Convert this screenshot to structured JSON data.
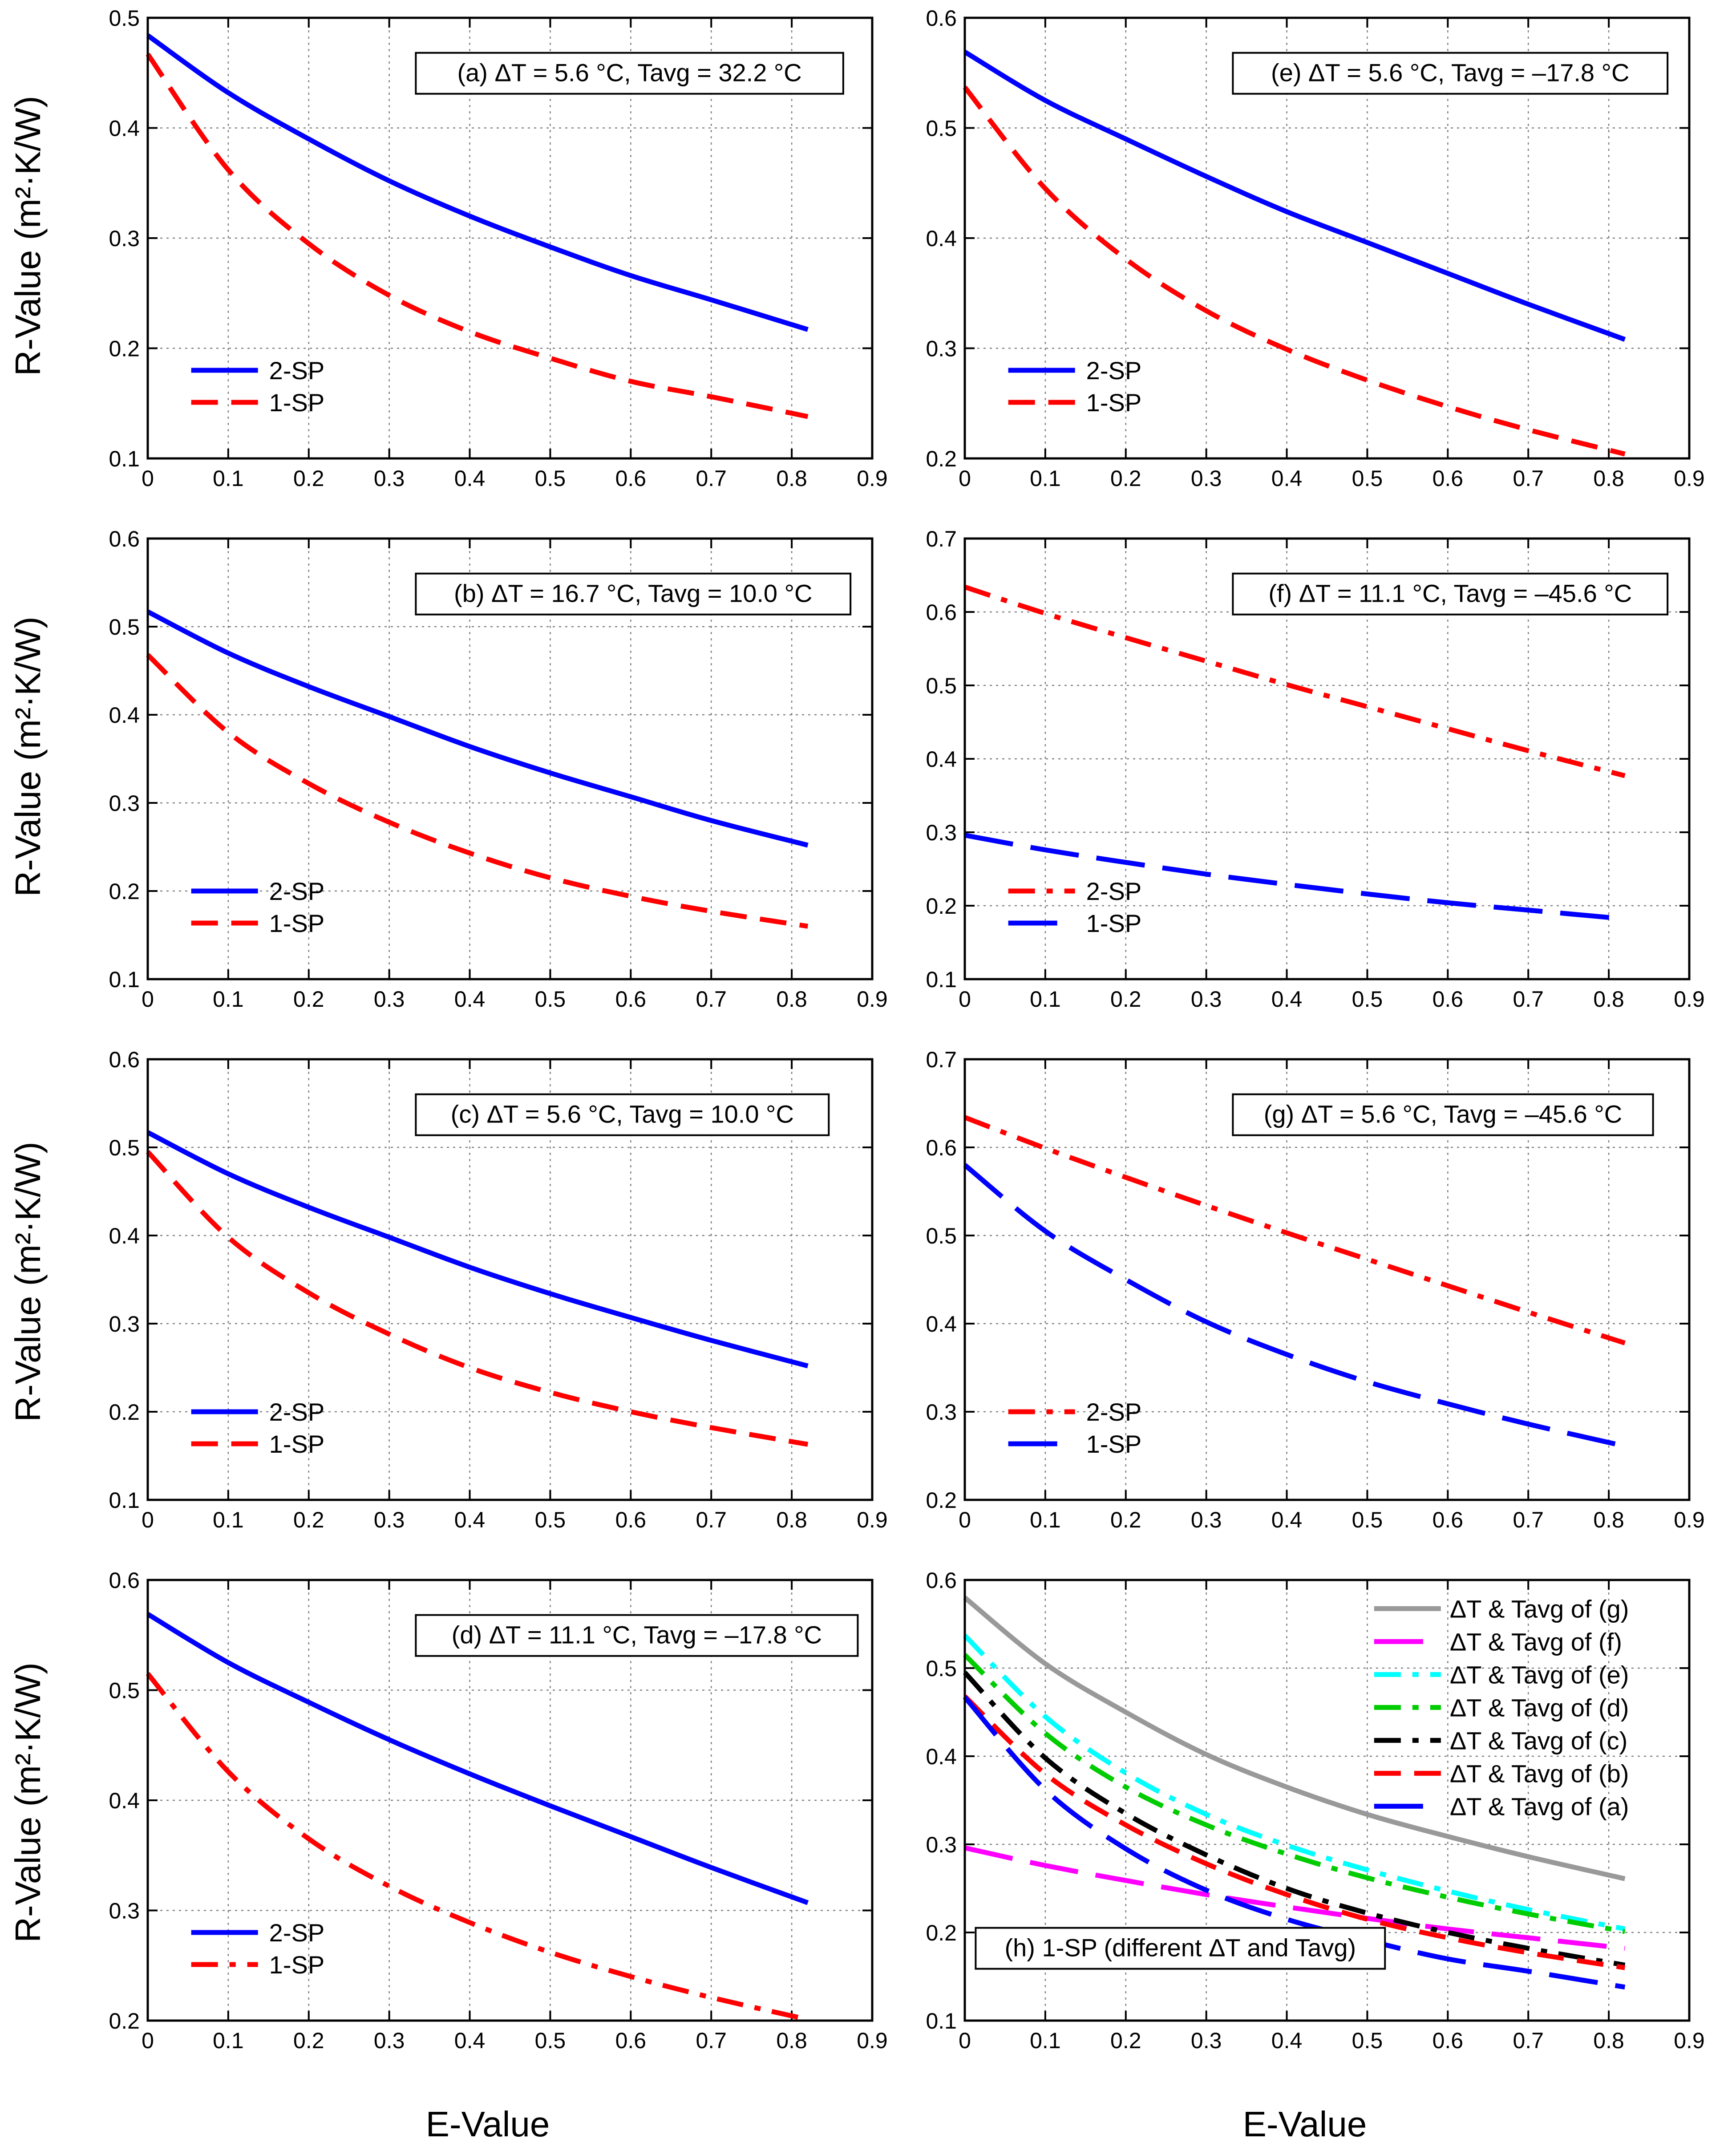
{
  "figure": {
    "xlabel_left": "E-Value",
    "xlabel_right": "E-Value",
    "ylabel": "R-Value (m²·K/W)"
  },
  "colors": {
    "blue": "#0000ff",
    "red": "#ff0000",
    "gray": "#999999",
    "magenta": "#ff00ff",
    "cyan": "#00ffff",
    "green": "#00cc00",
    "black": "#000000"
  },
  "chart_data": [
    {
      "id": "a",
      "type": "line",
      "annotation": "(a) ΔT = 5.6 °C, Tavg = 32.2 °C",
      "xlim": [
        0,
        0.9
      ],
      "ylim": [
        0.1,
        0.5
      ],
      "xticks": [
        "0",
        "0.1",
        "0.2",
        "0.3",
        "0.4",
        "0.5",
        "0.6",
        "0.7",
        "0.8",
        "0.9"
      ],
      "yticks": [
        "0.1",
        "0.2",
        "0.3",
        "0.4",
        "0.5"
      ],
      "x": [
        0,
        0.1,
        0.2,
        0.3,
        0.4,
        0.5,
        0.6,
        0.7,
        0.82
      ],
      "series": [
        {
          "name": "2-SP",
          "color": "blue",
          "style": "solid",
          "values": [
            0.484,
            0.432,
            0.39,
            0.352,
            0.32,
            0.292,
            0.266,
            0.244,
            0.217
          ]
        },
        {
          "name": "1-SP",
          "color": "red",
          "style": "dashed",
          "values": [
            0.467,
            0.362,
            0.295,
            0.248,
            0.215,
            0.191,
            0.17,
            0.156,
            0.138
          ]
        }
      ]
    },
    {
      "id": "b",
      "type": "line",
      "annotation": "(b) ΔT = 16.7 °C, Tavg = 10.0 °C",
      "xlim": [
        0,
        0.9
      ],
      "ylim": [
        0.1,
        0.6
      ],
      "xticks": [
        "0",
        "0.1",
        "0.2",
        "0.3",
        "0.4",
        "0.5",
        "0.6",
        "0.7",
        "0.8",
        "0.9"
      ],
      "yticks": [
        "0.1",
        "0.2",
        "0.3",
        "0.4",
        "0.5",
        "0.6"
      ],
      "x": [
        0,
        0.1,
        0.2,
        0.3,
        0.4,
        0.5,
        0.6,
        0.7,
        0.82
      ],
      "series": [
        {
          "name": "2-SP",
          "color": "blue",
          "style": "solid",
          "values": [
            0.517,
            0.47,
            0.432,
            0.398,
            0.364,
            0.334,
            0.307,
            0.28,
            0.252
          ]
        },
        {
          "name": "1-SP",
          "color": "red",
          "style": "dashed",
          "values": [
            0.468,
            0.38,
            0.322,
            0.278,
            0.243,
            0.215,
            0.194,
            0.177,
            0.16
          ]
        }
      ]
    },
    {
      "id": "c",
      "type": "line",
      "annotation": "(c) ΔT = 5.6 °C, Tavg = 10.0 °C",
      "xlim": [
        0,
        0.9
      ],
      "ylim": [
        0.1,
        0.6
      ],
      "xticks": [
        "0",
        "0.1",
        "0.2",
        "0.3",
        "0.4",
        "0.5",
        "0.6",
        "0.7",
        "0.8",
        "0.9"
      ],
      "yticks": [
        "0.1",
        "0.2",
        "0.3",
        "0.4",
        "0.5",
        "0.6"
      ],
      "x": [
        0,
        0.1,
        0.2,
        0.3,
        0.4,
        0.5,
        0.6,
        0.7,
        0.82
      ],
      "series": [
        {
          "name": "2-SP",
          "color": "blue",
          "style": "solid",
          "values": [
            0.517,
            0.47,
            0.432,
            0.398,
            0.364,
            0.334,
            0.307,
            0.281,
            0.252
          ]
        },
        {
          "name": "1-SP",
          "color": "red",
          "style": "dashed",
          "values": [
            0.495,
            0.398,
            0.335,
            0.288,
            0.25,
            0.222,
            0.2,
            0.182,
            0.163
          ]
        }
      ]
    },
    {
      "id": "d",
      "type": "line",
      "annotation": "(d) ΔT = 11.1 °C, Tavg = –17.8 °C",
      "xlim": [
        0,
        0.9
      ],
      "ylim": [
        0.2,
        0.6
      ],
      "xticks": [
        "0",
        "0.1",
        "0.2",
        "0.3",
        "0.4",
        "0.5",
        "0.6",
        "0.7",
        "0.8",
        "0.9"
      ],
      "yticks": [
        "0.2",
        "0.3",
        "0.4",
        "0.5",
        "0.6"
      ],
      "x": [
        0,
        0.1,
        0.2,
        0.3,
        0.4,
        0.5,
        0.6,
        0.7,
        0.82
      ],
      "series": [
        {
          "name": "2-SP",
          "color": "blue",
          "style": "solid",
          "values": [
            0.569,
            0.525,
            0.489,
            0.455,
            0.424,
            0.395,
            0.367,
            0.339,
            0.307
          ]
        },
        {
          "name": "1-SP",
          "color": "red",
          "style": "dashdot",
          "values": [
            0.515,
            0.426,
            0.365,
            0.322,
            0.289,
            0.262,
            0.24,
            0.221,
            0.201
          ]
        }
      ]
    },
    {
      "id": "e",
      "type": "line",
      "annotation": "(e) ΔT = 5.6 °C, Tavg = –17.8 °C",
      "xlim": [
        0,
        0.9
      ],
      "ylim": [
        0.2,
        0.6
      ],
      "xticks": [
        "0",
        "0.1",
        "0.2",
        "0.3",
        "0.4",
        "0.5",
        "0.6",
        "0.7",
        "0.8",
        "0.9"
      ],
      "yticks": [
        "0.2",
        "0.3",
        "0.4",
        "0.5",
        "0.6"
      ],
      "x": [
        0,
        0.1,
        0.2,
        0.3,
        0.4,
        0.5,
        0.6,
        0.7,
        0.82
      ],
      "series": [
        {
          "name": "2-SP",
          "color": "blue",
          "style": "solid",
          "values": [
            0.569,
            0.525,
            0.49,
            0.456,
            0.424,
            0.396,
            0.368,
            0.34,
            0.308
          ]
        },
        {
          "name": "1-SP",
          "color": "red",
          "style": "dashed",
          "values": [
            0.537,
            0.445,
            0.381,
            0.334,
            0.299,
            0.271,
            0.247,
            0.226,
            0.204
          ]
        }
      ]
    },
    {
      "id": "f",
      "type": "line",
      "annotation": "(f) ΔT = 11.1 °C, Tavg = –45.6 °C",
      "xlim": [
        0,
        0.9
      ],
      "ylim": [
        0.1,
        0.7
      ],
      "xticks": [
        "0",
        "0.1",
        "0.2",
        "0.3",
        "0.4",
        "0.5",
        "0.6",
        "0.7",
        "0.8",
        "0.9"
      ],
      "yticks": [
        "0.1",
        "0.2",
        "0.3",
        "0.4",
        "0.5",
        "0.6",
        "0.7"
      ],
      "x": [
        0,
        0.1,
        0.2,
        0.3,
        0.4,
        0.5,
        0.6,
        0.7,
        0.82
      ],
      "series": [
        {
          "name": "2-SP",
          "color": "red",
          "style": "dashdot",
          "values": [
            0.634,
            0.598,
            0.565,
            0.533,
            0.501,
            0.471,
            0.441,
            0.411,
            0.377
          ]
        },
        {
          "name": "1-SP",
          "color": "blue",
          "style": "longdash",
          "values": [
            0.296,
            0.276,
            0.259,
            0.243,
            0.229,
            0.216,
            0.204,
            0.194,
            0.182
          ]
        }
      ]
    },
    {
      "id": "g",
      "type": "line",
      "annotation": "(g) ΔT = 5.6 °C, Tavg = –45.6 °C",
      "xlim": [
        0,
        0.9
      ],
      "ylim": [
        0.2,
        0.7
      ],
      "xticks": [
        "0",
        "0.1",
        "0.2",
        "0.3",
        "0.4",
        "0.5",
        "0.6",
        "0.7",
        "0.8",
        "0.9"
      ],
      "yticks": [
        "0.2",
        "0.3",
        "0.4",
        "0.5",
        "0.6",
        "0.7"
      ],
      "x": [
        0,
        0.1,
        0.2,
        0.3,
        0.4,
        0.5,
        0.6,
        0.7,
        0.82
      ],
      "series": [
        {
          "name": "2-SP",
          "color": "red",
          "style": "dashdot",
          "values": [
            0.634,
            0.599,
            0.566,
            0.534,
            0.503,
            0.473,
            0.443,
            0.413,
            0.378
          ]
        },
        {
          "name": "1-SP",
          "color": "blue",
          "style": "longdash",
          "values": [
            0.58,
            0.505,
            0.45,
            0.402,
            0.365,
            0.334,
            0.309,
            0.286,
            0.261
          ]
        }
      ]
    },
    {
      "id": "h",
      "type": "line",
      "annotation": "(h) 1-SP (different  ΔT and Tavg)",
      "xlim": [
        0,
        0.9
      ],
      "ylim": [
        0.1,
        0.6
      ],
      "xticks": [
        "0",
        "0.1",
        "0.2",
        "0.3",
        "0.4",
        "0.5",
        "0.6",
        "0.7",
        "0.8",
        "0.9"
      ],
      "yticks": [
        "0.1",
        "0.2",
        "0.3",
        "0.4",
        "0.5",
        "0.6"
      ],
      "x": [
        0,
        0.1,
        0.2,
        0.3,
        0.4,
        0.5,
        0.6,
        0.7,
        0.82
      ],
      "series": [
        {
          "name": "ΔT & Tavg of (g)",
          "color": "gray",
          "style": "solid",
          "values": [
            0.58,
            0.505,
            0.45,
            0.402,
            0.365,
            0.334,
            0.309,
            0.286,
            0.261
          ]
        },
        {
          "name": "ΔT & Tavg of (f)",
          "color": "magenta",
          "style": "longdash",
          "values": [
            0.296,
            0.276,
            0.259,
            0.243,
            0.229,
            0.216,
            0.204,
            0.194,
            0.182
          ]
        },
        {
          "name": "ΔT & Tavg of (e)",
          "color": "cyan",
          "style": "dashdot",
          "values": [
            0.537,
            0.445,
            0.381,
            0.334,
            0.299,
            0.271,
            0.247,
            0.226,
            0.204
          ]
        },
        {
          "name": "ΔT & Tavg of (d)",
          "color": "green",
          "style": "dashdot",
          "values": [
            0.515,
            0.426,
            0.365,
            0.322,
            0.289,
            0.262,
            0.24,
            0.221,
            0.201
          ]
        },
        {
          "name": "ΔT & Tavg of (c)",
          "color": "black",
          "style": "dashdot",
          "values": [
            0.495,
            0.398,
            0.335,
            0.288,
            0.25,
            0.222,
            0.2,
            0.182,
            0.163
          ]
        },
        {
          "name": "ΔT & Tavg of (b)",
          "color": "red",
          "style": "dashed",
          "values": [
            0.468,
            0.38,
            0.322,
            0.278,
            0.243,
            0.215,
            0.194,
            0.177,
            0.16
          ]
        },
        {
          "name": "ΔT & Tavg of (a)",
          "color": "blue",
          "style": "longdash",
          "values": [
            0.467,
            0.362,
            0.295,
            0.248,
            0.215,
            0.191,
            0.17,
            0.156,
            0.138
          ]
        }
      ]
    }
  ]
}
